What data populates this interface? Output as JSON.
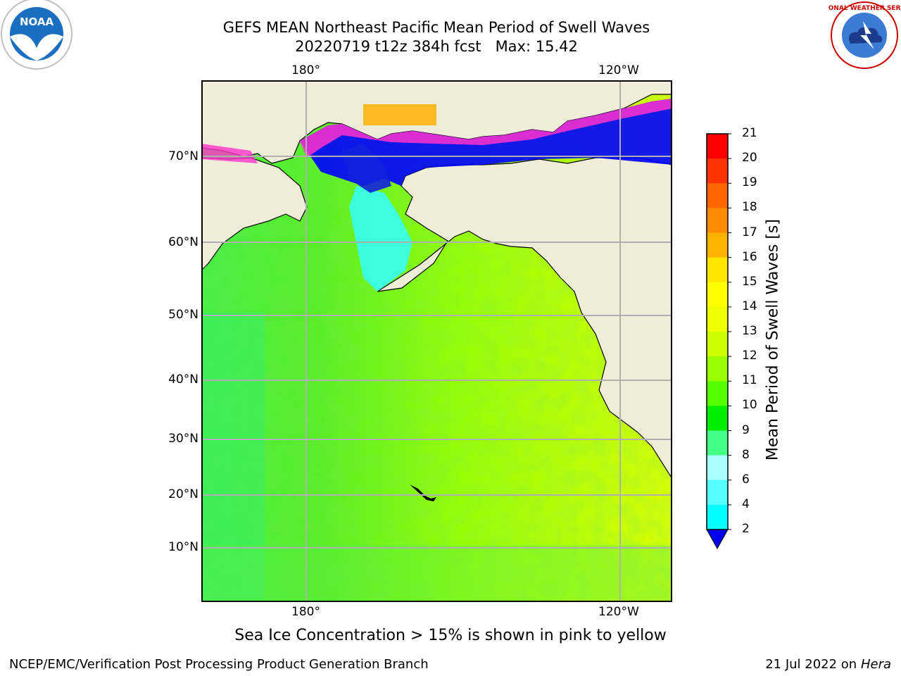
{
  "title": {
    "line1": "GEFS MEAN Northeast Pacific Mean Period of Swell Waves",
    "line2": "20220719 t12z 384h fcst   Max: 15.42"
  },
  "logos": {
    "left": "noaa-logo",
    "right": "national-weather-service-logo",
    "left_text": "NOAA",
    "right_text": "NATIONAL WEATHER SERVICE"
  },
  "map": {
    "lon_labels_top": [
      "180°",
      "120°W"
    ],
    "lon_labels_bottom": [
      "180°",
      "120°W"
    ],
    "lat_labels": [
      "70°N",
      "60°N",
      "50°N",
      "40°N",
      "30°N",
      "20°N",
      "10°N"
    ],
    "land_color": "#efedd8",
    "ocean_dominant_color": "#99ff00",
    "ice_colors": [
      "#0000ff",
      "#ff00ff",
      "#ffb000",
      "#00ccff"
    ]
  },
  "colorbar": {
    "label": "Mean Period of Swell Waves [s]",
    "ticks": [
      "21",
      "20",
      "19",
      "18",
      "17",
      "16",
      "15",
      "14",
      "13",
      "12",
      "11",
      "10",
      "9",
      "8",
      "6",
      "4",
      "2"
    ],
    "colors": [
      "#ff0000",
      "#ff3300",
      "#ff6600",
      "#ff8c00",
      "#ffb300",
      "#ffe600",
      "#ffff00",
      "#eeff00",
      "#ccff00",
      "#99ff00",
      "#55ff00",
      "#00ee00",
      "#44ff88",
      "#aaffff",
      "#55ffff",
      "#00ffff",
      "#00aaff",
      "#0055ff"
    ],
    "extend_color": "#0000ee"
  },
  "footnote": "Sea Ice Concentration > 15% is shown in pink to yellow",
  "credit": "NCEP/EMC/Verification Post Processing Product Generation Branch",
  "date_prefix": "21 Jul 2022 on ",
  "date_host": "Hera"
}
